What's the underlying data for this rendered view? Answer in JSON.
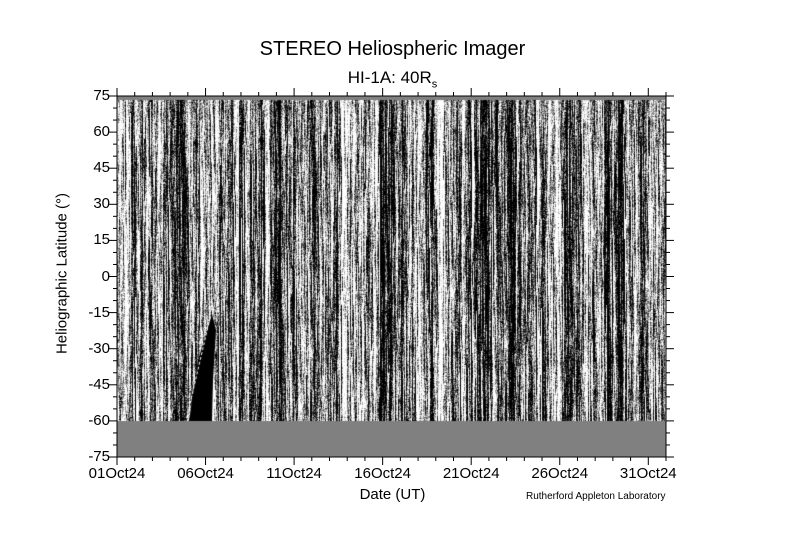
{
  "chart_data": {
    "type": "heatmap",
    "title": "STEREO Heliospheric Imager",
    "subtitle_main": "HI-1A: 40R",
    "subtitle_sub": "s",
    "xlabel": "Date (UT)",
    "ylabel": "Heliographic Latitude (°)",
    "x_ticks": [
      "01Oct24",
      "06Oct24",
      "11Oct24",
      "16Oct24",
      "21Oct24",
      "26Oct24",
      "31Oct24"
    ],
    "x_range": [
      "01Oct24",
      "01Nov24"
    ],
    "y_ticks": [
      75,
      60,
      45,
      30,
      15,
      0,
      -15,
      -30,
      -45,
      -60,
      -75
    ],
    "y_range": [
      -75,
      75
    ],
    "no_data_below_latitude": -60,
    "colormap": "grayscale",
    "no_data_color": "#808080",
    "grid": false
  },
  "credit": "Rutherford Appleton Laboratory"
}
